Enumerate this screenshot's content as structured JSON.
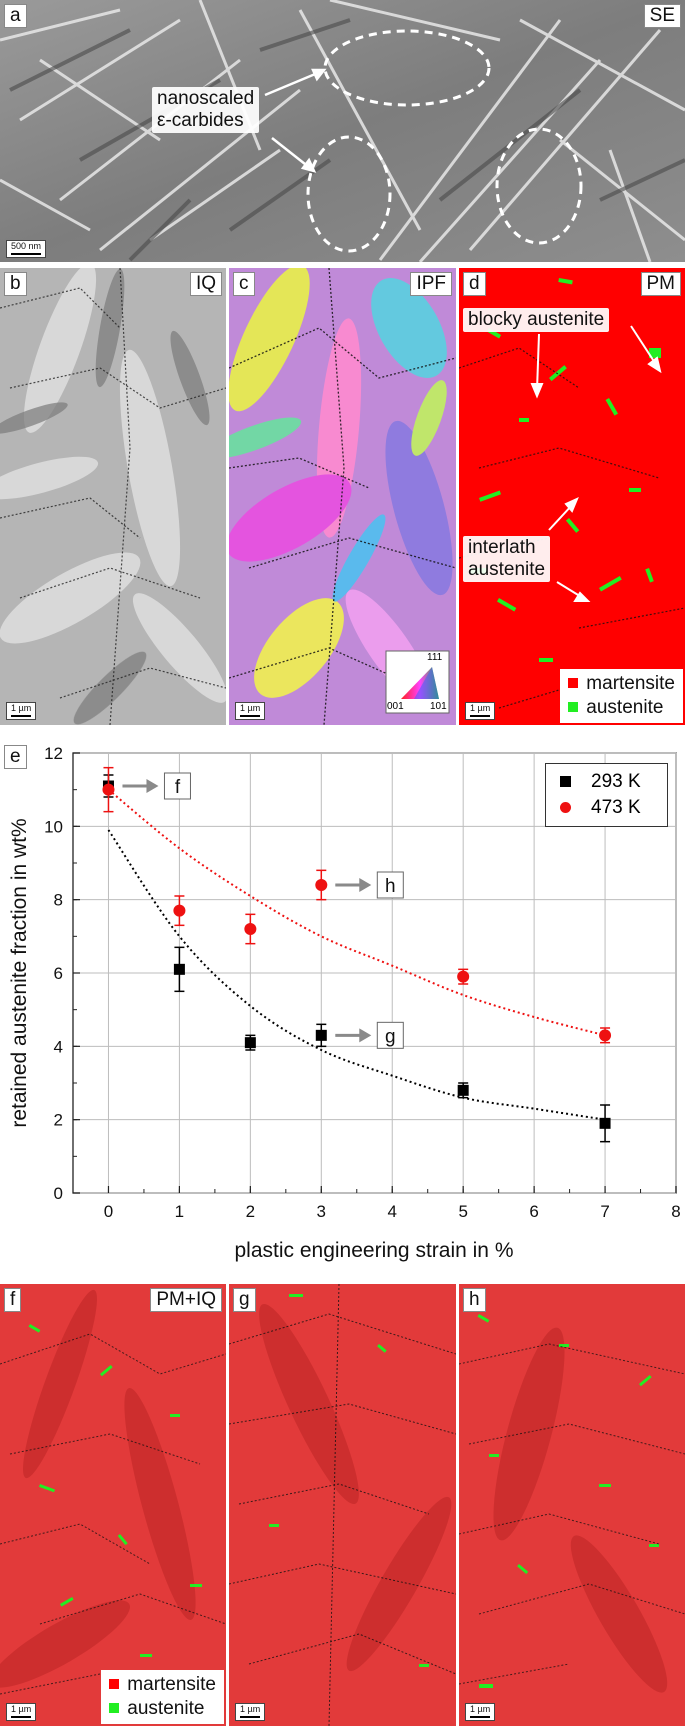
{
  "panels": {
    "a": {
      "label": "a",
      "mode": "SE",
      "annotation_line1": "nanoscaled",
      "annotation_line2": "ε-carbides",
      "scale": "500 nm"
    },
    "b": {
      "label": "b",
      "mode": "IQ",
      "scale": "1 µm"
    },
    "c": {
      "label": "c",
      "mode": "IPF",
      "scale": "1 µm",
      "ipf_key": {
        "top": "111",
        "left": "001",
        "right": "101"
      }
    },
    "d": {
      "label": "d",
      "mode": "PM",
      "scale": "1 µm",
      "annotation_blocky": "blocky austenite",
      "annotation_interlath_1": "interlath",
      "annotation_interlath_2": "austenite"
    },
    "f": {
      "label": "f",
      "mode": "PM+IQ",
      "scale": "1 µm"
    },
    "g": {
      "label": "g",
      "scale": "1 µm"
    },
    "h": {
      "label": "h",
      "scale": "1 µm"
    }
  },
  "phase_legend": {
    "martensite": "martensite",
    "austenite": "austenite"
  },
  "colors": {
    "martensite": "#ff0000",
    "martensite_overlay": "#e23a3a",
    "austenite": "#22ee22",
    "series_293": "#000000",
    "series_473": "#ee1111"
  },
  "chart_data": {
    "type": "scatter",
    "panel_label": "e",
    "xlabel": "plastic engineering strain in %",
    "ylabel": "retained austenite fraction in wt%",
    "xlim": [
      -0.5,
      8
    ],
    "ylim": [
      0,
      12
    ],
    "xticks": [
      0,
      1,
      2,
      3,
      4,
      5,
      6,
      7,
      8
    ],
    "yticks": [
      0,
      2,
      4,
      6,
      8,
      10,
      12
    ],
    "grid": true,
    "legend_position": "top-right",
    "series": [
      {
        "name": "293 K",
        "marker": "square",
        "color": "#000000",
        "x": [
          0,
          1,
          2,
          3,
          5,
          7
        ],
        "y": [
          11.1,
          6.1,
          4.1,
          4.3,
          2.8,
          1.9
        ],
        "err": [
          0.3,
          0.6,
          0.2,
          0.3,
          0.2,
          0.5
        ],
        "fit": {
          "style": "dotted",
          "x": [
            0,
            1,
            2,
            3,
            4,
            5,
            6,
            7
          ],
          "y": [
            9.9,
            7.0,
            5.1,
            3.9,
            3.2,
            2.6,
            2.3,
            2.0
          ]
        }
      },
      {
        "name": "473 K",
        "marker": "circle",
        "color": "#ee1111",
        "x": [
          0,
          1,
          2,
          3,
          5,
          7
        ],
        "y": [
          11.0,
          7.7,
          7.2,
          8.4,
          5.9,
          4.3
        ],
        "err": [
          0.6,
          0.4,
          0.4,
          0.4,
          0.2,
          0.2
        ],
        "fit": {
          "style": "dotted",
          "x": [
            0,
            1,
            2,
            3,
            4,
            5,
            6,
            7
          ],
          "y": [
            11.0,
            9.4,
            8.1,
            7.0,
            6.2,
            5.4,
            4.8,
            4.3
          ]
        }
      }
    ],
    "callouts": [
      {
        "text": "f",
        "x": 0,
        "y": 11.1
      },
      {
        "text": "h",
        "x": 3,
        "y": 8.4
      },
      {
        "text": "g",
        "x": 3,
        "y": 4.3
      }
    ]
  }
}
